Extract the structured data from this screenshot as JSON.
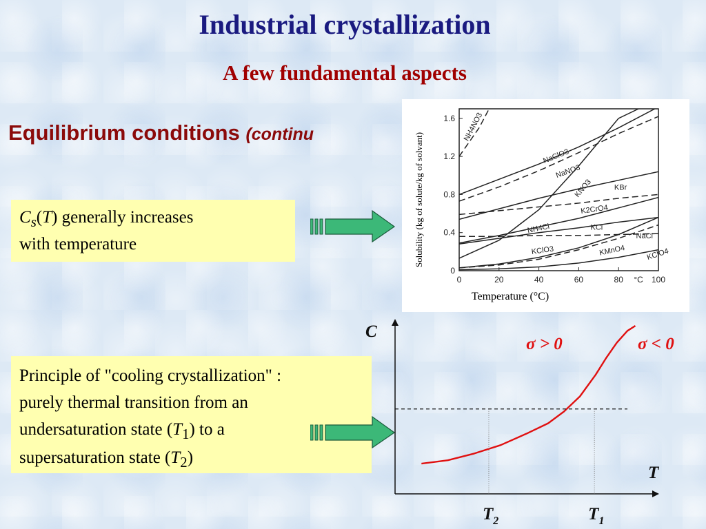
{
  "slide": {
    "title": "Industrial crystallization",
    "subtitle": "A few fundamental aspects",
    "section_heading": "Equilibrium conditions",
    "section_heading_suffix": "(continu"
  },
  "box1": {
    "c": "C",
    "s": "s",
    "paren_open": "(",
    "t": "T",
    "line1_rest": ") generally increases",
    "line2": "with temperature"
  },
  "box2": {
    "line1": "Principle of \"cooling crystallization\" :",
    "line2": "purely thermal transition from an",
    "line3_a": "undersaturation state (",
    "line3_t": "T",
    "line3_sub": "1",
    "line3_b": ") to a",
    "line4_a": "supersaturation state (",
    "line4_t": "T",
    "line4_sub": "2",
    "line4_b": ")"
  },
  "colors": {
    "title": "#1a1a80",
    "subtitle": "#a00000",
    "section": "#8b0a0a",
    "box_fill": "#ffffb0",
    "arrow_fill": "#3cb878",
    "curve": "#e01010"
  },
  "chart_data": [
    {
      "type": "line",
      "title": "",
      "xlabel": "Temperature (°C)",
      "ylabel": "Solubility (kg of solute/kg of solvant)",
      "xlim": [
        0,
        100
      ],
      "ylim": [
        0,
        1.7
      ],
      "x_ticks": [
        "0",
        "20",
        "40",
        "60",
        "80",
        "°C",
        "100"
      ],
      "y_ticks": [
        "0",
        "0.4",
        "0.8",
        "1.2",
        "1.6"
      ],
      "series": [
        {
          "name": "NH4NO3",
          "style": "dashed",
          "x": [
            0,
            10,
            15
          ],
          "y": [
            1.2,
            1.5,
            1.7
          ]
        },
        {
          "name": "NaClO3",
          "style": "solid",
          "x": [
            0,
            20,
            40,
            60,
            80,
            100
          ],
          "y": [
            0.8,
            0.96,
            1.12,
            1.3,
            1.5,
            1.72
          ]
        },
        {
          "name": "NaNO3",
          "style": "dashed",
          "x": [
            0,
            20,
            40,
            60,
            80,
            100
          ],
          "y": [
            0.73,
            0.88,
            1.05,
            1.24,
            1.44,
            1.62
          ]
        },
        {
          "name": "KNO3",
          "style": "solid",
          "x": [
            0,
            20,
            40,
            60,
            80,
            90
          ],
          "y": [
            0.13,
            0.32,
            0.64,
            1.1,
            1.6,
            1.7
          ]
        },
        {
          "name": "KBr",
          "style": "solid",
          "x": [
            0,
            20,
            40,
            60,
            80,
            100
          ],
          "y": [
            0.54,
            0.65,
            0.76,
            0.86,
            0.95,
            1.04
          ]
        },
        {
          "name": "K2CrO4",
          "style": "dashed",
          "x": [
            0,
            20,
            40,
            60,
            80,
            100
          ],
          "y": [
            0.59,
            0.63,
            0.67,
            0.71,
            0.76,
            0.8
          ]
        },
        {
          "name": "NH4Cl",
          "style": "solid",
          "x": [
            0,
            20,
            40,
            60,
            80,
            100
          ],
          "y": [
            0.29,
            0.37,
            0.46,
            0.55,
            0.66,
            0.77
          ]
        },
        {
          "name": "KCl",
          "style": "solid",
          "x": [
            0,
            20,
            40,
            60,
            80,
            100
          ],
          "y": [
            0.28,
            0.34,
            0.4,
            0.45,
            0.51,
            0.56
          ]
        },
        {
          "name": "NaCl",
          "style": "dashed",
          "x": [
            0,
            20,
            40,
            60,
            80,
            100
          ],
          "y": [
            0.36,
            0.36,
            0.37,
            0.37,
            0.38,
            0.39
          ]
        },
        {
          "name": "KClO3",
          "style": "solid",
          "x": [
            0,
            20,
            40,
            60,
            80,
            100
          ],
          "y": [
            0.03,
            0.07,
            0.14,
            0.24,
            0.38,
            0.56
          ]
        },
        {
          "name": "KMnO4",
          "style": "dashed",
          "x": [
            0,
            20,
            40,
            60,
            80,
            100
          ],
          "y": [
            0.03,
            0.06,
            0.12,
            0.22,
            0.34,
            0.48
          ]
        },
        {
          "name": "KClO4",
          "style": "solid",
          "x": [
            0,
            20,
            40,
            60,
            80,
            100
          ],
          "y": [
            0.01,
            0.02,
            0.04,
            0.08,
            0.14,
            0.22
          ]
        }
      ]
    },
    {
      "type": "line",
      "title": "",
      "xlabel": "T",
      "ylabel": "C",
      "x_ticks": [
        "T2",
        "T1"
      ],
      "annotations": [
        "σ > 0",
        "σ < 0"
      ],
      "series": [
        {
          "name": "",
          "x": [
            0.1,
            0.2,
            0.3,
            0.4,
            0.5,
            0.58,
            0.64,
            0.7,
            0.76,
            0.8,
            0.84,
            0.88,
            0.91
          ],
          "y": [
            0.18,
            0.2,
            0.24,
            0.29,
            0.36,
            0.42,
            0.49,
            0.58,
            0.71,
            0.81,
            0.9,
            0.97,
            1.0
          ]
        }
      ]
    }
  ]
}
